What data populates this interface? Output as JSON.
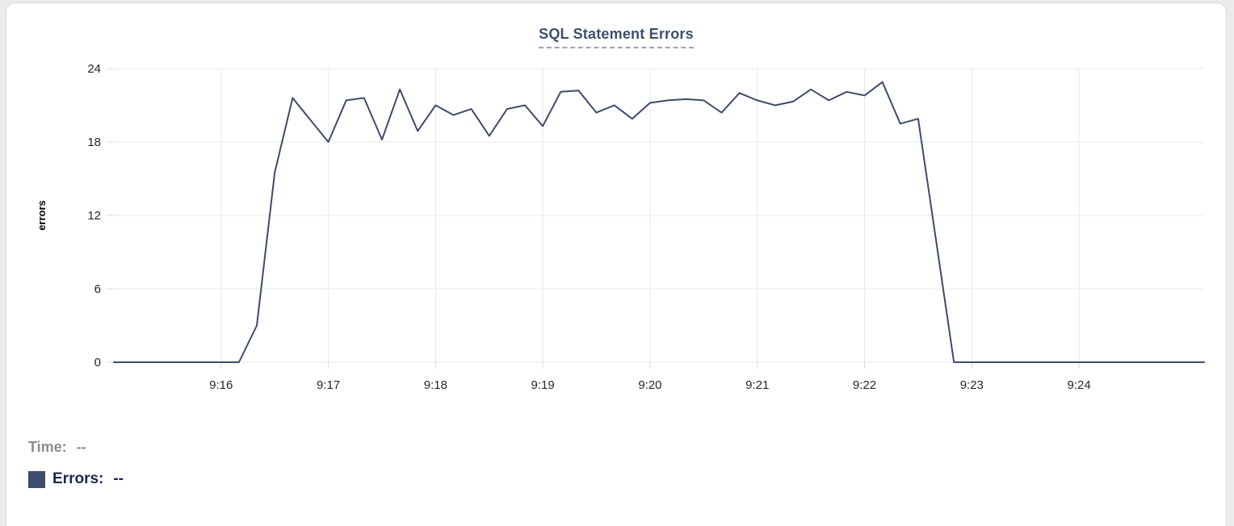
{
  "title": "SQL Statement Errors",
  "legend": {
    "time_label": "Time:",
    "time_value": "--",
    "errors_label": "Errors:",
    "errors_value": "--"
  },
  "colors": {
    "line": "#3d4c6b",
    "swatch": "#3d4c6b",
    "title": "#3e4f6e",
    "grid": "#e8e8e8"
  },
  "chart_data": {
    "type": "line",
    "title": "SQL Statement Errors",
    "xlabel": "",
    "ylabel": "errors",
    "grid": true,
    "legend_position": "bottom-left",
    "ylim": [
      0,
      24
    ],
    "yticks": [
      0,
      6,
      12,
      18,
      24
    ],
    "xlim": [
      "9:15:00",
      "9:25:10"
    ],
    "xticks": [
      "9:16",
      "9:17",
      "9:18",
      "9:19",
      "9:20",
      "9:21",
      "9:22",
      "9:23",
      "9:24"
    ],
    "series": [
      {
        "name": "Errors",
        "color": "#3d4c6b",
        "x": [
          "9:15:00",
          "9:15:10",
          "9:15:20",
          "9:15:30",
          "9:15:40",
          "9:15:50",
          "9:16:00",
          "9:16:10",
          "9:16:20",
          "9:16:30",
          "9:16:40",
          "9:16:50",
          "9:17:00",
          "9:17:10",
          "9:17:20",
          "9:17:30",
          "9:17:40",
          "9:17:50",
          "9:18:00",
          "9:18:10",
          "9:18:20",
          "9:18:30",
          "9:18:40",
          "9:18:50",
          "9:19:00",
          "9:19:10",
          "9:19:20",
          "9:19:30",
          "9:19:40",
          "9:19:50",
          "9:20:00",
          "9:20:10",
          "9:20:20",
          "9:20:30",
          "9:20:40",
          "9:20:50",
          "9:21:00",
          "9:21:10",
          "9:21:20",
          "9:21:30",
          "9:21:40",
          "9:21:50",
          "9:22:00",
          "9:22:10",
          "9:22:20",
          "9:22:30",
          "9:22:40",
          "9:22:50",
          "9:23:00",
          "9:23:10",
          "9:23:20",
          "9:23:30",
          "9:23:40",
          "9:23:50",
          "9:24:00",
          "9:24:10",
          "9:24:20",
          "9:24:30",
          "9:24:40",
          "9:24:50",
          "9:25:00",
          "9:25:10"
        ],
        "values": [
          0,
          0,
          0,
          0,
          0,
          0,
          0,
          0,
          3,
          15.5,
          21.6,
          19.8,
          18,
          21.4,
          21.6,
          18.2,
          22.3,
          18.9,
          21,
          20.2,
          20.7,
          18.5,
          20.7,
          21,
          19.3,
          22.1,
          22.2,
          20.4,
          21,
          19.9,
          21.2,
          21.4,
          21.5,
          21.4,
          20.4,
          22,
          21.4,
          21,
          21.3,
          22.3,
          21.4,
          22.1,
          21.8,
          22.9,
          19.5,
          19.9,
          10,
          0,
          0,
          0,
          0,
          0,
          0,
          0,
          0,
          0,
          0,
          0,
          0,
          0,
          0,
          0
        ]
      }
    ]
  }
}
